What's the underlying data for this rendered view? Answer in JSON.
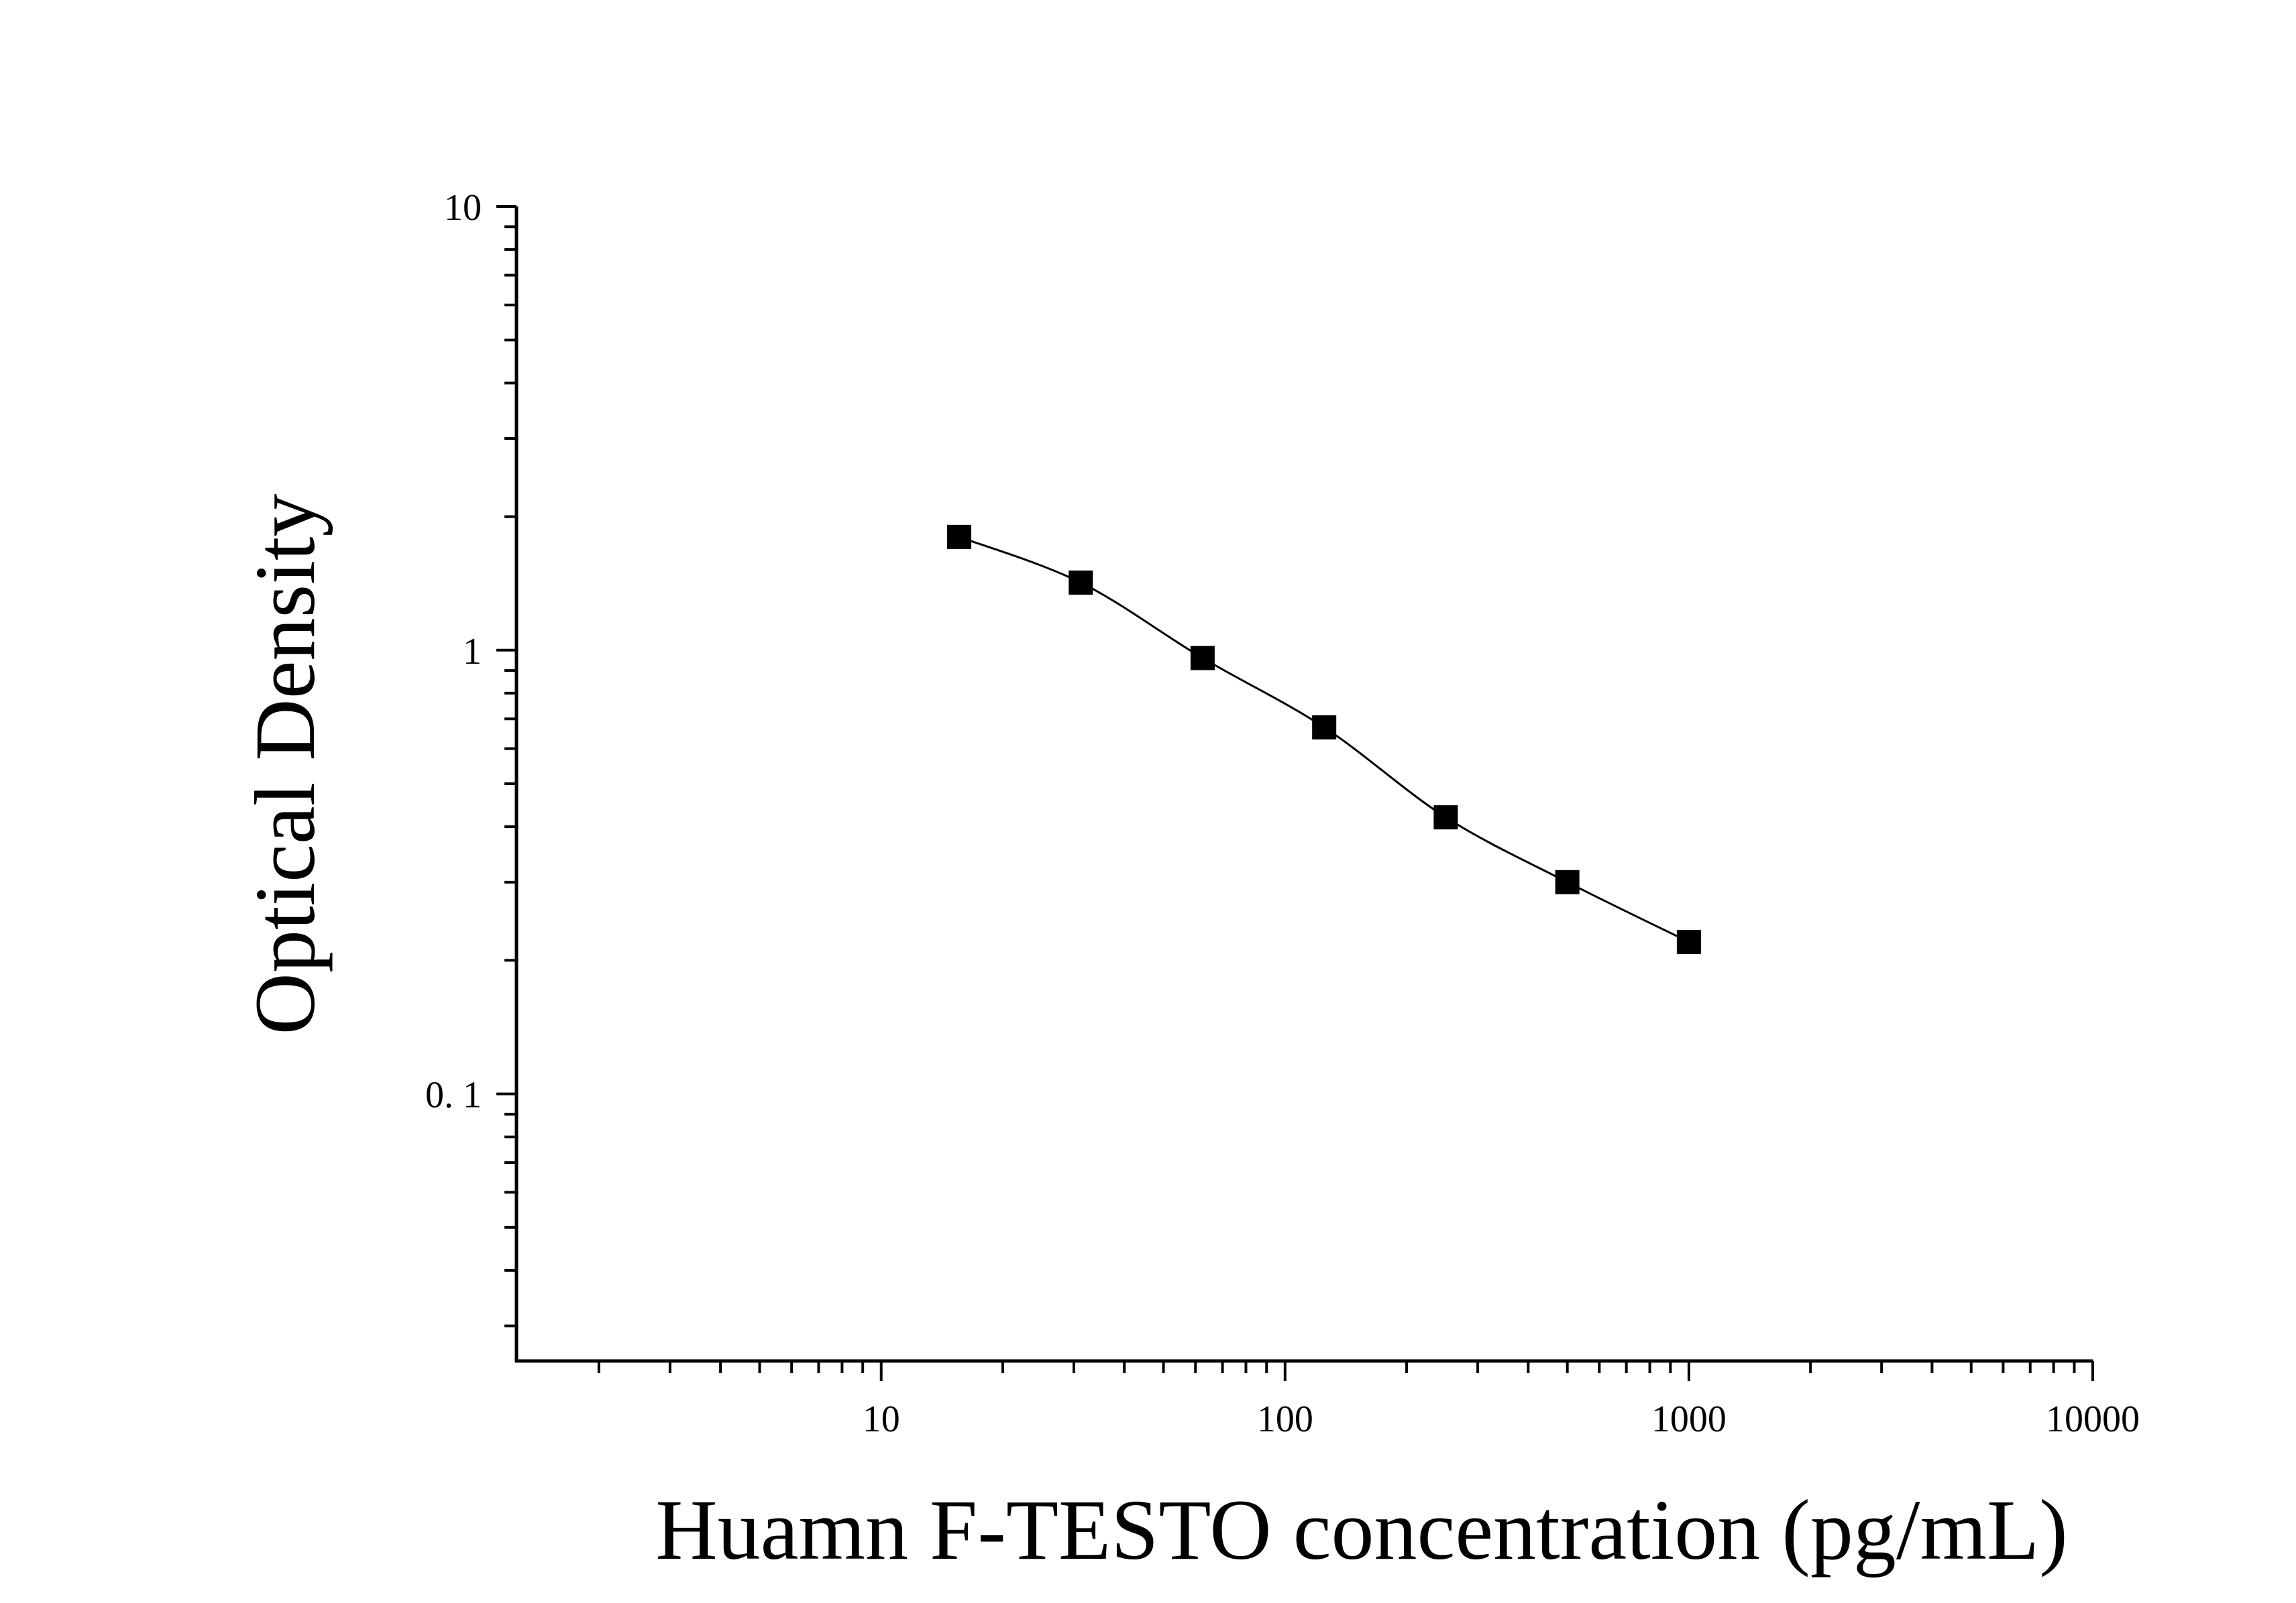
{
  "chart_data": {
    "type": "scatter",
    "title": "",
    "xlabel": "Huamn F-TESTO concentration (pg/mL)",
    "ylabel": "Optical Density",
    "x_scale": "log",
    "y_scale": "log",
    "xlim": [
      1.25,
      10000
    ],
    "ylim": [
      0.025,
      10
    ],
    "x_ticks": [
      {
        "value": 10,
        "label": "10"
      },
      {
        "value": 100,
        "label": "100"
      },
      {
        "value": 1000,
        "label": "1000"
      },
      {
        "value": 10000,
        "label": "10000"
      }
    ],
    "y_ticks": [
      {
        "value": 0.1,
        "label": "0. 1"
      },
      {
        "value": 1,
        "label": "1"
      },
      {
        "value": 10,
        "label": "10"
      }
    ],
    "grid": false,
    "legend": "none",
    "series": [
      {
        "marker": "square",
        "color": "#000000",
        "fit_curve": true,
        "x": [
          15.6,
          31.2,
          62.5,
          125,
          250,
          500,
          1000
        ],
        "y": [
          1.8,
          1.42,
          0.96,
          0.67,
          0.42,
          0.3,
          0.22
        ]
      }
    ]
  }
}
